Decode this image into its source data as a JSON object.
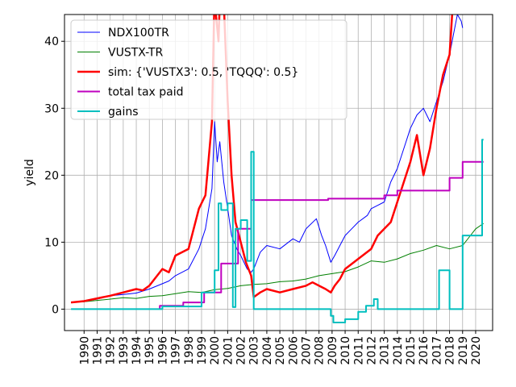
{
  "chart_data": {
    "type": "line",
    "title": "",
    "xlabel": "",
    "ylabel": "yield",
    "xlim": [
      1988.5,
      2021.3
    ],
    "ylim": [
      -3.2,
      44
    ],
    "grid": true,
    "legend_position": "top-left",
    "x_tick_labels": [
      "1990",
      "1991",
      "1992",
      "1993",
      "1994",
      "1995",
      "1996",
      "1997",
      "1998",
      "1999",
      "2000",
      "2001",
      "2002",
      "2003",
      "2004",
      "2005",
      "2006",
      "2007",
      "2008",
      "2009",
      "2010",
      "2011",
      "2012",
      "2013",
      "2014",
      "2015",
      "2016",
      "2017",
      "2018",
      "2019",
      "2020"
    ],
    "y_ticks": [
      0,
      10,
      20,
      30,
      40
    ],
    "series": [
      {
        "name": "NDX100TR",
        "color": "#0000ff",
        "linewidth": 1,
        "x": [
          1989.0,
          1990.0,
          1991.0,
          1992.0,
          1993.0,
          1994.0,
          1995.0,
          1996.0,
          1996.5,
          1997.0,
          1998.0,
          1998.8,
          1999.3,
          1999.8,
          2000.0,
          2000.2,
          2000.4,
          2000.7,
          2001.0,
          2001.3,
          2001.7,
          2002.0,
          2002.5,
          2002.8,
          2003.0,
          2003.5,
          2004.0,
          2005.0,
          2006.0,
          2006.5,
          2007.0,
          2007.8,
          2008.2,
          2008.5,
          2008.9,
          2009.2,
          2009.6,
          2010.0,
          2010.5,
          2011.0,
          2011.7,
          2012.0,
          2012.5,
          2013.0,
          2013.5,
          2014.0,
          2014.5,
          2015.0,
          2015.5,
          2016.0,
          2016.5,
          2017.0,
          2017.5,
          2018.0,
          2018.3,
          2018.6,
          2018.9,
          2019.0
        ],
        "y": [
          1.0,
          1.2,
          1.5,
          2.0,
          2.2,
          2.4,
          3.0,
          3.8,
          4.2,
          5.0,
          6.0,
          9.0,
          12.0,
          18.0,
          28.0,
          22.0,
          25.0,
          19.0,
          15.0,
          11.0,
          9.0,
          8.0,
          6.0,
          5.5,
          6.0,
          8.5,
          9.5,
          9.0,
          10.5,
          10.0,
          12.0,
          13.5,
          11.0,
          9.5,
          7.0,
          8.0,
          9.5,
          11.0,
          12.0,
          13.0,
          14.0,
          15.0,
          15.5,
          16.0,
          19.0,
          21.0,
          24.0,
          27.0,
          29.0,
          30.0,
          28.0,
          31.0,
          34.0,
          38.0,
          41.0,
          44.0,
          43.0,
          42.0
        ]
      },
      {
        "name": "VUSTX-TR",
        "color": "#008000",
        "linewidth": 1,
        "x": [
          1989.0,
          1990.0,
          1991.0,
          1992.0,
          1993.0,
          1994.0,
          1995.0,
          1996.0,
          1997.0,
          1998.0,
          1999.0,
          2000.0,
          2001.0,
          2002.0,
          2003.0,
          2004.0,
          2005.0,
          2006.0,
          2007.0,
          2008.0,
          2009.0,
          2010.0,
          2011.0,
          2012.0,
          2013.0,
          2014.0,
          2015.0,
          2016.0,
          2017.0,
          2018.0,
          2019.0,
          2020.0,
          2020.6
        ],
        "y": [
          1.0,
          1.1,
          1.3,
          1.5,
          1.7,
          1.6,
          1.9,
          2.0,
          2.3,
          2.6,
          2.5,
          2.9,
          3.1,
          3.5,
          3.7,
          3.8,
          4.1,
          4.2,
          4.5,
          5.0,
          5.3,
          5.6,
          6.3,
          7.2,
          7.0,
          7.5,
          8.3,
          8.8,
          9.5,
          9.0,
          9.5,
          12.0,
          12.8
        ]
      },
      {
        "name": "sim: {'VUSTX3': 0.5, 'TQQQ': 0.5}",
        "color": "#ff0000",
        "linewidth": 2.5,
        "x": [
          1989.0,
          1990.0,
          1991.0,
          1992.0,
          1993.0,
          1994.0,
          1994.5,
          1995.0,
          1996.0,
          1996.5,
          1997.0,
          1998.0,
          1998.8,
          1999.3,
          1999.8,
          2000.0,
          2000.1,
          2000.3,
          2000.5,
          2000.7,
          2001.0,
          2001.3,
          2001.6,
          2002.0,
          2002.4,
          2002.8,
          2003.0,
          2003.5,
          2004.0,
          2005.0,
          2006.0,
          2007.0,
          2007.5,
          2008.0,
          2008.5,
          2008.9,
          2009.2,
          2009.6,
          2010.0,
          2011.0,
          2012.0,
          2012.5,
          2013.0,
          2013.5,
          2014.0,
          2014.5,
          2015.0,
          2015.5,
          2016.0,
          2016.5,
          2017.0,
          2017.5,
          2018.0,
          2018.2,
          2018.5,
          2018.8,
          2019.0
        ],
        "y": [
          1.0,
          1.2,
          1.6,
          2.0,
          2.5,
          3.0,
          2.8,
          3.5,
          6.0,
          5.5,
          8.0,
          9.0,
          15.0,
          17.0,
          28.0,
          48.0,
          44.0,
          40.0,
          52.0,
          46.0,
          31.0,
          20.0,
          13.0,
          10.0,
          7.0,
          5.0,
          1.8,
          2.5,
          3.0,
          2.5,
          3.0,
          3.5,
          4.0,
          3.5,
          3.0,
          2.5,
          3.5,
          4.5,
          6.0,
          7.5,
          9.0,
          11.0,
          12.0,
          13.0,
          16.0,
          19.0,
          22.0,
          26.0,
          20.0,
          24.0,
          30.0,
          35.0,
          38.0,
          44.0,
          48.0,
          46.0,
          44.0
        ]
      },
      {
        "name": "total tax paid",
        "color": "#bf00bf",
        "linewidth": 2,
        "x": [
          1995.8,
          1995.8,
          1997.6,
          1997.6,
          1999.2,
          1999.2,
          2000.5,
          2000.5,
          2001.8,
          2001.8,
          2002.8,
          2002.8,
          2003.0,
          2003.0,
          2008.7,
          2008.7,
          2013.0,
          2013.0,
          2014.0,
          2014.0,
          2018.0,
          2018.0,
          2019.0,
          2019.0,
          2020.6
        ],
        "y": [
          0.0,
          0.5,
          0.5,
          1.0,
          1.0,
          2.5,
          2.5,
          6.8,
          6.8,
          12.0,
          12.0,
          16.3,
          16.3,
          16.3,
          16.3,
          16.5,
          16.5,
          17.0,
          17.0,
          17.7,
          17.7,
          19.6,
          19.6,
          22.0,
          22.0
        ]
      },
      {
        "name": "gains",
        "color": "#00bfbf",
        "linewidth": 2,
        "x": [
          1989.0,
          1996.0,
          1996.0,
          1999.0,
          1999.0,
          2000.0,
          2000.0,
          2000.3,
          2000.3,
          2000.5,
          2000.5,
          2001.0,
          2001.0,
          2001.4,
          2001.4,
          2001.6,
          2001.6,
          2002.0,
          2002.0,
          2002.5,
          2002.5,
          2002.8,
          2002.8,
          2003.0,
          2003.0,
          2008.9,
          2008.9,
          2009.1,
          2009.1,
          2010.0,
          2010.0,
          2011.0,
          2011.0,
          2011.6,
          2011.6,
          2012.2,
          2012.2,
          2012.5,
          2012.5,
          2013.5,
          2013.5,
          2017.2,
          2017.2,
          2018.0,
          2018.0,
          2019.0,
          2019.0,
          2020.5,
          2020.5,
          2020.6
        ],
        "y": [
          0,
          0,
          0.4,
          0.4,
          2.5,
          2.5,
          5.8,
          5.8,
          15.8,
          15.8,
          14.8,
          14.8,
          15.8,
          15.8,
          0.3,
          0.3,
          12.0,
          12.0,
          13.3,
          13.3,
          7.2,
          7.2,
          23.5,
          23.5,
          0,
          0,
          -1.0,
          -1.0,
          -2.0,
          -2.0,
          -1.5,
          -1.5,
          -0.4,
          -0.4,
          0.5,
          0.5,
          1.5,
          1.5,
          0,
          0,
          0,
          0,
          5.8,
          5.8,
          0,
          0,
          11.0,
          11.0,
          25.3,
          25.3
        ]
      }
    ]
  }
}
